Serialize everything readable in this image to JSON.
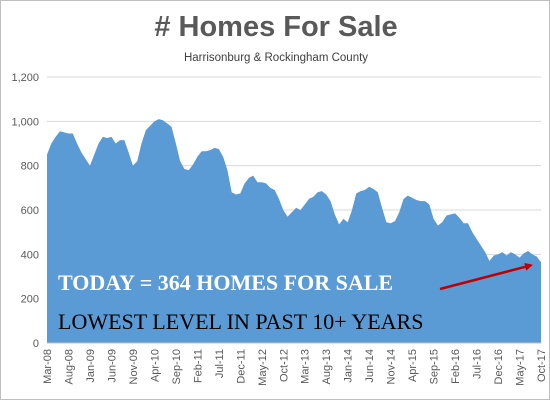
{
  "chart_data": {
    "type": "area",
    "title": "# Homes For Sale",
    "subtitle": "Harrisonburg & Rockingham County",
    "xlabel": "",
    "ylabel": "",
    "ylim": [
      0,
      1200
    ],
    "yticks": [
      0,
      200,
      400,
      600,
      800,
      "1,000",
      "1,200"
    ],
    "grid": true,
    "legend": "none",
    "xtick_labels": [
      "Mar-08",
      "Aug-08",
      "Jan-09",
      "Jun-09",
      "Nov-09",
      "Apr-10",
      "Sep-10",
      "Feb-11",
      "Jul-11",
      "Dec-11",
      "May-12",
      "Oct-12",
      "Mar-13",
      "Aug-13",
      "Jan-14",
      "Jun-14",
      "Nov-14",
      "Apr-15",
      "Sep-15",
      "Feb-16",
      "Jul-16",
      "Dec-16",
      "May-17",
      "Oct-17"
    ],
    "x_start": "Mar-08",
    "x_end": "Oct-17",
    "fill_color": "#5b9bd5",
    "values": [
      850,
      900,
      930,
      955,
      950,
      945,
      945,
      900,
      860,
      830,
      800,
      850,
      900,
      930,
      925,
      930,
      900,
      915,
      915,
      860,
      800,
      820,
      900,
      960,
      980,
      1000,
      1010,
      1005,
      990,
      975,
      900,
      820,
      785,
      780,
      805,
      840,
      865,
      865,
      870,
      880,
      875,
      840,
      780,
      680,
      670,
      675,
      720,
      745,
      755,
      725,
      725,
      720,
      700,
      690,
      650,
      600,
      570,
      590,
      610,
      600,
      625,
      650,
      660,
      680,
      685,
      670,
      640,
      580,
      535,
      560,
      545,
      600,
      675,
      685,
      690,
      705,
      695,
      680,
      610,
      545,
      540,
      550,
      590,
      650,
      665,
      655,
      645,
      640,
      640,
      625,
      560,
      530,
      545,
      575,
      580,
      585,
      565,
      540,
      540,
      500,
      470,
      440,
      410,
      370,
      395,
      400,
      410,
      395,
      410,
      400,
      385,
      405,
      415,
      400,
      390,
      364
    ],
    "annotations": [
      {
        "text": "TODAY = 364 HOMES FOR SALE",
        "color": "#ffffff"
      },
      {
        "text": "LOWEST LEVEL IN PAST 10+ YEARS",
        "color": "#000000"
      }
    ],
    "arrow_color": "#c00000"
  }
}
